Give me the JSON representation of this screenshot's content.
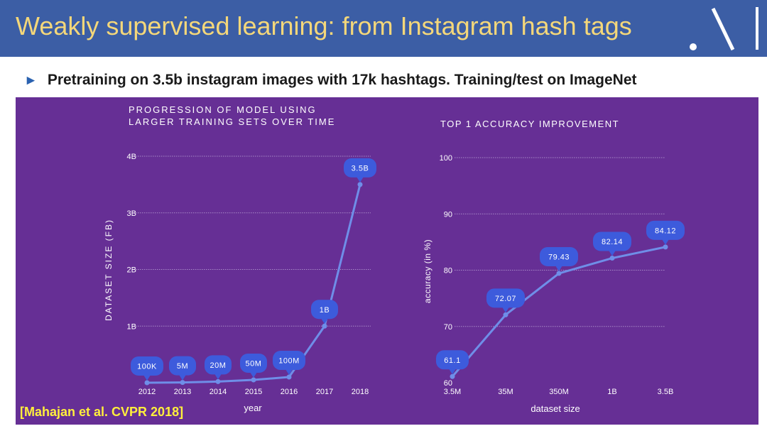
{
  "header": {
    "title": "Weakly supervised learning: from Instagram hash tags"
  },
  "subtitle": {
    "bullet": "►",
    "text": "Pretraining on 3.5b instagram images with 17k hashtags. Training/test on ImageNet"
  },
  "citation": "[Mahajan et al. CVPR 2018]",
  "colors": {
    "header_bg": "#3c5ea5",
    "title": "#f4d77a",
    "panel_bg": "#662f95",
    "line": "#6f8ee8",
    "bubble": "#3d5bdc",
    "citation": "#ffef3c"
  },
  "chart_data": [
    {
      "type": "line",
      "title": "PROGRESSION OF MODEL USING LARGER TRAINING SETS OVER TIME",
      "title_lines": [
        "PROGRESSION OF MODEL USING",
        "LARGER TRAINING SETS OVER TIME"
      ],
      "xlabel": "year",
      "ylabel": "DATASET SIZE (FB)",
      "categories": [
        "2012",
        "2013",
        "2014",
        "2015",
        "2016",
        "2017",
        "2018"
      ],
      "values": [
        0.0001,
        0.005,
        0.02,
        0.05,
        0.1,
        1.0,
        3.5
      ],
      "data_labels": [
        "100K",
        "5M",
        "20M",
        "50M",
        "100M",
        "1B",
        "3.5B"
      ],
      "yticks": [
        1,
        2,
        3,
        4
      ],
      "ytick_labels": [
        "1B",
        "2B",
        "3B",
        "4B"
      ],
      "ylim": [
        0,
        4
      ],
      "grid": true
    },
    {
      "type": "line",
      "title": "TOP 1 ACCURACY IMPROVEMENT",
      "xlabel": "dataset size",
      "ylabel": "accuracy (in %)",
      "categories": [
        "3.5M",
        "35M",
        "350M",
        "1B",
        "3.5B"
      ],
      "values": [
        61.1,
        72.07,
        79.43,
        82.14,
        84.12
      ],
      "data_labels": [
        "61.1",
        "72.07",
        "79.43",
        "82.14",
        "84.12"
      ],
      "yticks": [
        60,
        70,
        80,
        90,
        100
      ],
      "ytick_labels": [
        "60",
        "70",
        "80",
        "90",
        "100"
      ],
      "ylim": [
        60,
        100
      ],
      "grid": true
    }
  ]
}
